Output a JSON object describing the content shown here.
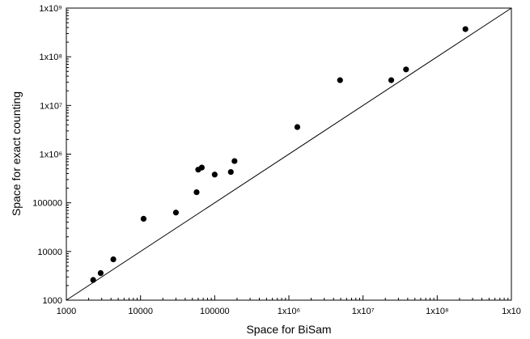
{
  "chart_data": {
    "type": "scatter",
    "title": "",
    "xlabel": "Space for BiSam",
    "ylabel": "Space for exact counting",
    "xscale": "log",
    "yscale": "log",
    "xlim": [
      1000,
      1000000000
    ],
    "ylim": [
      1000,
      1000000000
    ],
    "x_ticks": [
      {
        "value": 1000,
        "label": "1000"
      },
      {
        "value": 10000,
        "label": "10000"
      },
      {
        "value": 100000,
        "label": "100000"
      },
      {
        "value": 1000000,
        "label": "1x10⁶"
      },
      {
        "value": 10000000,
        "label": "1x10⁷"
      },
      {
        "value": 100000000,
        "label": "1x10⁸"
      },
      {
        "value": 1000000000,
        "label": "1x10"
      }
    ],
    "y_ticks": [
      {
        "value": 1000,
        "label": "1000"
      },
      {
        "value": 10000,
        "label": "10000"
      },
      {
        "value": 100000,
        "label": "100000"
      },
      {
        "value": 1000000,
        "label": "1x10⁶"
      },
      {
        "value": 10000000,
        "label": "1x10⁷"
      },
      {
        "value": 100000000,
        "label": "1x10⁸"
      },
      {
        "value": 1000000000,
        "label": "1x10⁹"
      }
    ],
    "reference_line": {
      "from": [
        1000,
        1000
      ],
      "to": [
        1000000000,
        1000000000
      ]
    },
    "grid": false,
    "legend": "none",
    "series": [
      {
        "points": [
          {
            "x": 2300,
            "y": 2600
          },
          {
            "x": 2900,
            "y": 3600
          },
          {
            "x": 4300,
            "y": 6900
          },
          {
            "x": 11000,
            "y": 47000
          },
          {
            "x": 30000,
            "y": 63000
          },
          {
            "x": 57000,
            "y": 165000
          },
          {
            "x": 60000,
            "y": 480000
          },
          {
            "x": 67000,
            "y": 530000
          },
          {
            "x": 100000,
            "y": 380000
          },
          {
            "x": 165000,
            "y": 430000
          },
          {
            "x": 185000,
            "y": 720000
          },
          {
            "x": 1300000,
            "y": 3600000
          },
          {
            "x": 4900000,
            "y": 33000000
          },
          {
            "x": 24000000,
            "y": 33000000
          },
          {
            "x": 38000000,
            "y": 55000000
          },
          {
            "x": 240000000,
            "y": 370000000
          }
        ]
      }
    ],
    "colors": {
      "marker": "#000000",
      "axis": "#000000",
      "line": "#000000"
    }
  }
}
